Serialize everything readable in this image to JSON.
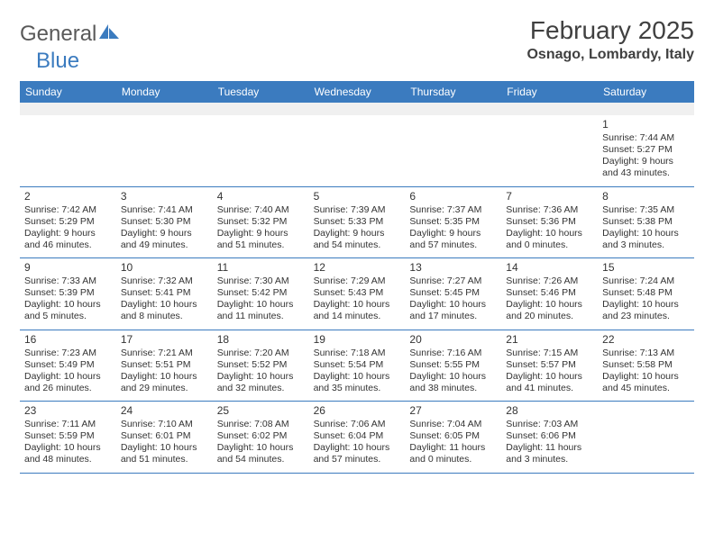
{
  "brand": {
    "part1": "General",
    "part2": "Blue"
  },
  "title": "February 2025",
  "location": "Osnago, Lombardy, Italy",
  "colors": {
    "header_bg": "#3b7bbf",
    "header_text": "#ffffff",
    "rule": "#3b7bbf",
    "blank_bg": "#f0f0f0",
    "text": "#333333",
    "page_bg": "#ffffff"
  },
  "day_headers": [
    "Sunday",
    "Monday",
    "Tuesday",
    "Wednesday",
    "Thursday",
    "Friday",
    "Saturday"
  ],
  "weeks": [
    [
      null,
      null,
      null,
      null,
      null,
      null,
      {
        "n": "1",
        "sr": "Sunrise: 7:44 AM",
        "ss": "Sunset: 5:27 PM",
        "dl1": "Daylight: 9 hours",
        "dl2": "and 43 minutes."
      }
    ],
    [
      {
        "n": "2",
        "sr": "Sunrise: 7:42 AM",
        "ss": "Sunset: 5:29 PM",
        "dl1": "Daylight: 9 hours",
        "dl2": "and 46 minutes."
      },
      {
        "n": "3",
        "sr": "Sunrise: 7:41 AM",
        "ss": "Sunset: 5:30 PM",
        "dl1": "Daylight: 9 hours",
        "dl2": "and 49 minutes."
      },
      {
        "n": "4",
        "sr": "Sunrise: 7:40 AM",
        "ss": "Sunset: 5:32 PM",
        "dl1": "Daylight: 9 hours",
        "dl2": "and 51 minutes."
      },
      {
        "n": "5",
        "sr": "Sunrise: 7:39 AM",
        "ss": "Sunset: 5:33 PM",
        "dl1": "Daylight: 9 hours",
        "dl2": "and 54 minutes."
      },
      {
        "n": "6",
        "sr": "Sunrise: 7:37 AM",
        "ss": "Sunset: 5:35 PM",
        "dl1": "Daylight: 9 hours",
        "dl2": "and 57 minutes."
      },
      {
        "n": "7",
        "sr": "Sunrise: 7:36 AM",
        "ss": "Sunset: 5:36 PM",
        "dl1": "Daylight: 10 hours",
        "dl2": "and 0 minutes."
      },
      {
        "n": "8",
        "sr": "Sunrise: 7:35 AM",
        "ss": "Sunset: 5:38 PM",
        "dl1": "Daylight: 10 hours",
        "dl2": "and 3 minutes."
      }
    ],
    [
      {
        "n": "9",
        "sr": "Sunrise: 7:33 AM",
        "ss": "Sunset: 5:39 PM",
        "dl1": "Daylight: 10 hours",
        "dl2": "and 5 minutes."
      },
      {
        "n": "10",
        "sr": "Sunrise: 7:32 AM",
        "ss": "Sunset: 5:41 PM",
        "dl1": "Daylight: 10 hours",
        "dl2": "and 8 minutes."
      },
      {
        "n": "11",
        "sr": "Sunrise: 7:30 AM",
        "ss": "Sunset: 5:42 PM",
        "dl1": "Daylight: 10 hours",
        "dl2": "and 11 minutes."
      },
      {
        "n": "12",
        "sr": "Sunrise: 7:29 AM",
        "ss": "Sunset: 5:43 PM",
        "dl1": "Daylight: 10 hours",
        "dl2": "and 14 minutes."
      },
      {
        "n": "13",
        "sr": "Sunrise: 7:27 AM",
        "ss": "Sunset: 5:45 PM",
        "dl1": "Daylight: 10 hours",
        "dl2": "and 17 minutes."
      },
      {
        "n": "14",
        "sr": "Sunrise: 7:26 AM",
        "ss": "Sunset: 5:46 PM",
        "dl1": "Daylight: 10 hours",
        "dl2": "and 20 minutes."
      },
      {
        "n": "15",
        "sr": "Sunrise: 7:24 AM",
        "ss": "Sunset: 5:48 PM",
        "dl1": "Daylight: 10 hours",
        "dl2": "and 23 minutes."
      }
    ],
    [
      {
        "n": "16",
        "sr": "Sunrise: 7:23 AM",
        "ss": "Sunset: 5:49 PM",
        "dl1": "Daylight: 10 hours",
        "dl2": "and 26 minutes."
      },
      {
        "n": "17",
        "sr": "Sunrise: 7:21 AM",
        "ss": "Sunset: 5:51 PM",
        "dl1": "Daylight: 10 hours",
        "dl2": "and 29 minutes."
      },
      {
        "n": "18",
        "sr": "Sunrise: 7:20 AM",
        "ss": "Sunset: 5:52 PM",
        "dl1": "Daylight: 10 hours",
        "dl2": "and 32 minutes."
      },
      {
        "n": "19",
        "sr": "Sunrise: 7:18 AM",
        "ss": "Sunset: 5:54 PM",
        "dl1": "Daylight: 10 hours",
        "dl2": "and 35 minutes."
      },
      {
        "n": "20",
        "sr": "Sunrise: 7:16 AM",
        "ss": "Sunset: 5:55 PM",
        "dl1": "Daylight: 10 hours",
        "dl2": "and 38 minutes."
      },
      {
        "n": "21",
        "sr": "Sunrise: 7:15 AM",
        "ss": "Sunset: 5:57 PM",
        "dl1": "Daylight: 10 hours",
        "dl2": "and 41 minutes."
      },
      {
        "n": "22",
        "sr": "Sunrise: 7:13 AM",
        "ss": "Sunset: 5:58 PM",
        "dl1": "Daylight: 10 hours",
        "dl2": "and 45 minutes."
      }
    ],
    [
      {
        "n": "23",
        "sr": "Sunrise: 7:11 AM",
        "ss": "Sunset: 5:59 PM",
        "dl1": "Daylight: 10 hours",
        "dl2": "and 48 minutes."
      },
      {
        "n": "24",
        "sr": "Sunrise: 7:10 AM",
        "ss": "Sunset: 6:01 PM",
        "dl1": "Daylight: 10 hours",
        "dl2": "and 51 minutes."
      },
      {
        "n": "25",
        "sr": "Sunrise: 7:08 AM",
        "ss": "Sunset: 6:02 PM",
        "dl1": "Daylight: 10 hours",
        "dl2": "and 54 minutes."
      },
      {
        "n": "26",
        "sr": "Sunrise: 7:06 AM",
        "ss": "Sunset: 6:04 PM",
        "dl1": "Daylight: 10 hours",
        "dl2": "and 57 minutes."
      },
      {
        "n": "27",
        "sr": "Sunrise: 7:04 AM",
        "ss": "Sunset: 6:05 PM",
        "dl1": "Daylight: 11 hours",
        "dl2": "and 0 minutes."
      },
      {
        "n": "28",
        "sr": "Sunrise: 7:03 AM",
        "ss": "Sunset: 6:06 PM",
        "dl1": "Daylight: 11 hours",
        "dl2": "and 3 minutes."
      },
      null
    ]
  ]
}
